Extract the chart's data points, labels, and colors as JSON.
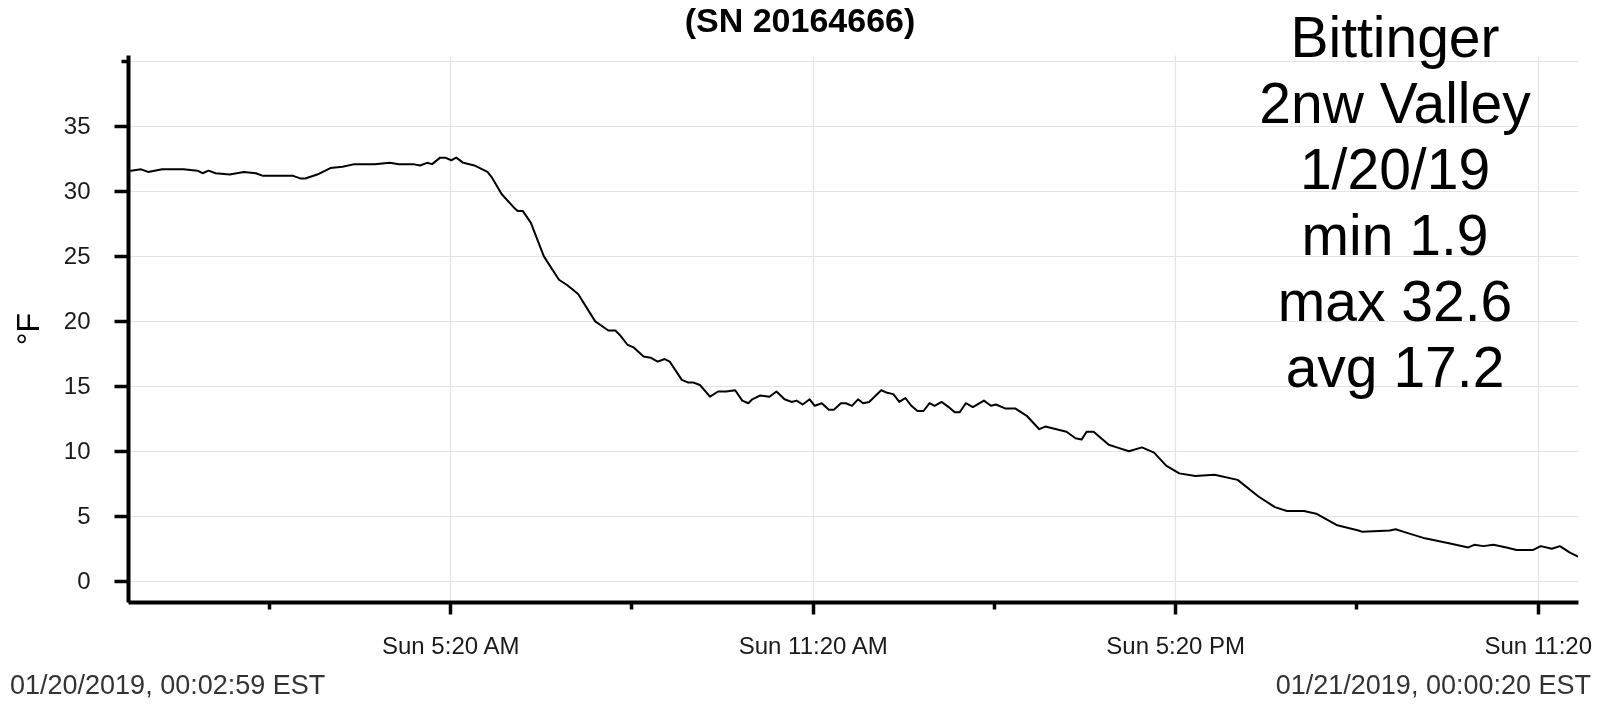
{
  "chart_data": {
    "type": "line",
    "title": "(SN 20164666)",
    "ylabel": "°F",
    "annotations": [
      "Bittinger",
      "2nw Valley",
      "1/20/19",
      "min 1.9",
      "max 32.6",
      "avg 17.2",
      "01/20/2019, 00:02:59 EST",
      "01/21/2019, 00:00:20 EST"
    ],
    "x": [
      "2019-01-20T00:03",
      "2019-01-20T00:13",
      "2019-01-20T00:20",
      "2019-01-20T00:34",
      "2019-01-20T00:55",
      "2019-01-20T01:09",
      "2019-01-20T01:14",
      "2019-01-20T01:20",
      "2019-01-20T01:27",
      "2019-01-20T01:41",
      "2019-01-20T01:55",
      "2019-01-20T02:07",
      "2019-01-20T02:14",
      "2019-01-20T02:26",
      "2019-01-20T02:32",
      "2019-01-20T02:44",
      "2019-01-20T02:51",
      "2019-01-20T02:56",
      "2019-01-20T03:08",
      "2019-01-20T03:21",
      "2019-01-20T03:33",
      "2019-01-20T03:45",
      "2019-01-20T04:05",
      "2019-01-20T04:20",
      "2019-01-20T04:29",
      "2019-01-20T04:43",
      "2019-01-20T04:50",
      "2019-01-20T04:57",
      "2019-01-20T05:02",
      "2019-01-20T05:10",
      "2019-01-20T05:15",
      "2019-01-20T05:21",
      "2019-01-20T05:26",
      "2019-01-20T05:33",
      "2019-01-20T05:44",
      "2019-01-20T05:57",
      "2019-01-20T06:02",
      "2019-01-20T06:11",
      "2019-01-20T06:24",
      "2019-01-20T06:27",
      "2019-01-20T06:32",
      "2019-01-20T06:40",
      "2019-01-20T06:53",
      "2019-01-20T07:08",
      "2019-01-20T07:16",
      "2019-01-20T07:27",
      "2019-01-20T07:44",
      "2019-01-20T07:57",
      "2019-01-20T08:04",
      "2019-01-20T08:09",
      "2019-01-20T08:16",
      "2019-01-20T08:22",
      "2019-01-20T08:32",
      "2019-01-20T08:39",
      "2019-01-20T08:46",
      "2019-01-20T08:53",
      "2019-01-20T08:58",
      "2019-01-20T09:10",
      "2019-01-20T09:16",
      "2019-01-20T09:21",
      "2019-01-20T09:28",
      "2019-01-20T09:38",
      "2019-01-20T09:46",
      "2019-01-20T09:54",
      "2019-01-20T10:03",
      "2019-01-20T10:10",
      "2019-01-20T10:16",
      "2019-01-20T10:20",
      "2019-01-20T10:28",
      "2019-01-20T10:37",
      "2019-01-20T10:44",
      "2019-01-20T10:52",
      "2019-01-20T10:59",
      "2019-01-20T11:04",
      "2019-01-20T11:10",
      "2019-01-20T11:17",
      "2019-01-20T11:22",
      "2019-01-20T11:29",
      "2019-01-20T11:36",
      "2019-01-20T11:41",
      "2019-01-20T11:48",
      "2019-01-20T11:53",
      "2019-01-20T11:59",
      "2019-01-20T12:05",
      "2019-01-20T12:10",
      "2019-01-20T12:16",
      "2019-01-20T12:28",
      "2019-01-20T12:34",
      "2019-01-20T12:40",
      "2019-01-20T12:46",
      "2019-01-20T12:52",
      "2019-01-20T12:58",
      "2019-01-20T13:04",
      "2019-01-20T13:10",
      "2019-01-20T13:16",
      "2019-01-20T13:21",
      "2019-01-20T13:28",
      "2019-01-20T13:35",
      "2019-01-20T13:41",
      "2019-01-20T13:46",
      "2019-01-20T13:52",
      "2019-01-20T13:59",
      "2019-01-20T14:10",
      "2019-01-20T14:17",
      "2019-01-20T14:22",
      "2019-01-20T14:31",
      "2019-01-20T14:41",
      "2019-01-20T14:53",
      "2019-01-20T15:05",
      "2019-01-20T15:11",
      "2019-01-20T15:32",
      "2019-01-20T15:41",
      "2019-01-20T15:47",
      "2019-01-20T15:52",
      "2019-01-20T15:59",
      "2019-01-20T16:05",
      "2019-01-20T16:14",
      "2019-01-20T16:22",
      "2019-01-20T16:34",
      "2019-01-20T16:47",
      "2019-01-20T16:59",
      "2019-01-20T17:11",
      "2019-01-20T17:24",
      "2019-01-20T17:40",
      "2019-01-20T17:59",
      "2019-01-20T18:22",
      "2019-01-20T18:43",
      "2019-01-20T18:59",
      "2019-01-20T19:11",
      "2019-01-20T19:28",
      "2019-01-20T19:40",
      "2019-01-20T20:01",
      "2019-01-20T20:22",
      "2019-01-20T20:26",
      "2019-01-20T20:53",
      "2019-01-20T20:59",
      "2019-01-20T21:07",
      "2019-01-20T21:28",
      "2019-01-20T21:53",
      "2019-01-20T22:11",
      "2019-01-20T22:17",
      "2019-01-20T22:26",
      "2019-01-20T22:36",
      "2019-01-20T22:49",
      "2019-01-20T22:59",
      "2019-01-20T23:15",
      "2019-01-20T23:23",
      "2019-01-20T23:34",
      "2019-01-20T23:42",
      "2019-01-20T23:52",
      "2019-01-21T00:00"
    ],
    "series": [
      {
        "color": "#000000",
        "values": [
          31.6,
          31.7,
          31.5,
          31.7,
          31.7,
          31.6,
          31.4,
          31.6,
          31.4,
          31.3,
          31.5,
          31.4,
          31.2,
          31.2,
          31.2,
          31.2,
          31.0,
          31.0,
          31.3,
          31.8,
          31.9,
          32.1,
          32.1,
          32.2,
          32.1,
          32.1,
          32.0,
          32.2,
          32.1,
          32.6,
          32.6,
          32.4,
          32.6,
          32.2,
          32.0,
          31.5,
          31.0,
          29.8,
          28.7,
          28.5,
          28.5,
          27.6,
          25.0,
          23.2,
          22.8,
          22.1,
          20.0,
          19.3,
          19.3,
          18.9,
          18.2,
          18.0,
          17.3,
          17.2,
          16.9,
          17.1,
          16.9,
          15.5,
          15.3,
          15.3,
          15.1,
          14.2,
          14.6,
          14.6,
          14.7,
          13.9,
          13.7,
          14.0,
          14.3,
          14.2,
          14.6,
          14.0,
          13.8,
          13.9,
          13.6,
          14.0,
          13.5,
          13.7,
          13.2,
          13.2,
          13.7,
          13.7,
          13.5,
          14.0,
          13.7,
          13.8,
          14.7,
          14.5,
          14.4,
          13.8,
          14.1,
          13.5,
          13.1,
          13.1,
          13.7,
          13.5,
          13.8,
          13.4,
          13.0,
          13.0,
          13.7,
          13.4,
          13.9,
          13.5,
          13.6,
          13.3,
          13.3,
          12.7,
          11.7,
          11.9,
          11.5,
          11.0,
          10.9,
          11.5,
          11.5,
          11.1,
          10.5,
          10.3,
          10.0,
          10.3,
          9.9,
          8.9,
          8.3,
          8.1,
          8.2,
          7.8,
          6.5,
          5.7,
          5.4,
          5.4,
          5.2,
          4.3,
          3.9,
          3.8,
          3.9,
          4.0,
          3.8,
          3.3,
          2.9,
          2.6,
          2.8,
          2.7,
          2.8,
          2.6,
          2.4,
          2.4,
          2.7,
          2.5,
          2.7,
          2.2,
          1.9
        ]
      }
    ],
    "xlim": [
      "2019-01-20T00:00",
      "2019-01-21T00:00"
    ],
    "xticks": [
      {
        "value": "2019-01-20T02:20",
        "label": null
      },
      {
        "value": "2019-01-20T05:20",
        "label": "Sun 5:20 AM"
      },
      {
        "value": "2019-01-20T08:20",
        "label": null
      },
      {
        "value": "2019-01-20T11:20",
        "label": "Sun 11:20 AM"
      },
      {
        "value": "2019-01-20T14:20",
        "label": null
      },
      {
        "value": "2019-01-20T17:20",
        "label": "Sun 5:20 PM"
      },
      {
        "value": "2019-01-20T20:20",
        "label": null
      },
      {
        "value": "2019-01-20T23:20",
        "label": "Sun 11:20"
      }
    ],
    "ylim": [
      -1.6,
      40.5
    ],
    "yticks": [
      0,
      5,
      10,
      15,
      20,
      25,
      30,
      35,
      {
        "value": 40,
        "label": null
      }
    ],
    "grid": true
  }
}
